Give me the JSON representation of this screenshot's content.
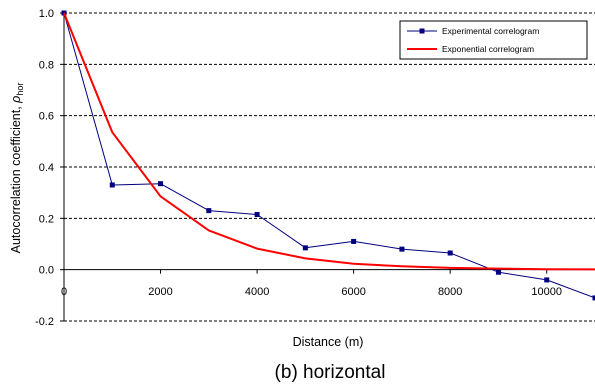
{
  "chart_data": {
    "type": "line",
    "title": "(b) horizontal",
    "xlabel": "Distance (m)",
    "ylabel_main": "Autocorrelation coefficient, ",
    "ylabel_symbol": "ρ",
    "ylabel_subscript": "hor",
    "xlim": [
      0,
      11000
    ],
    "ylim": [
      -0.2,
      1.0
    ],
    "x_ticks": [
      0,
      2000,
      4000,
      6000,
      8000,
      10000
    ],
    "x_tick_labels": [
      "0",
      "2000",
      "4000",
      "6000",
      "8000",
      "10000"
    ],
    "y_ticks": [
      -0.2,
      0.0,
      0.2,
      0.4,
      0.6,
      0.8,
      1.0
    ],
    "y_tick_labels": [
      "-0.2",
      "0.0",
      "0.2",
      "0.4",
      "0.6",
      "0.8",
      "1.0"
    ],
    "grid": "horizontal dashed",
    "legend_position": "top-right",
    "series": [
      {
        "name": "Experimental correlogram",
        "color": "#000080",
        "marker": "square",
        "x": [
          0,
          1000,
          2000,
          3000,
          4000,
          5000,
          6000,
          7000,
          8000,
          9000,
          10000,
          11000
        ],
        "y": [
          1.0,
          0.33,
          0.335,
          0.23,
          0.215,
          0.085,
          0.11,
          0.08,
          0.065,
          -0.01,
          -0.04,
          -0.11
        ]
      },
      {
        "name": "Exponential correlogram",
        "color": "#ff0000",
        "marker": "none",
        "x": [
          0,
          1000,
          2000,
          3000,
          4000,
          5000,
          6000,
          7000,
          8000,
          9000,
          10000,
          11000
        ],
        "y": [
          1.0,
          0.535,
          0.286,
          0.153,
          0.082,
          0.044,
          0.023,
          0.013,
          0.007,
          0.004,
          0.002,
          0.001
        ]
      }
    ]
  }
}
